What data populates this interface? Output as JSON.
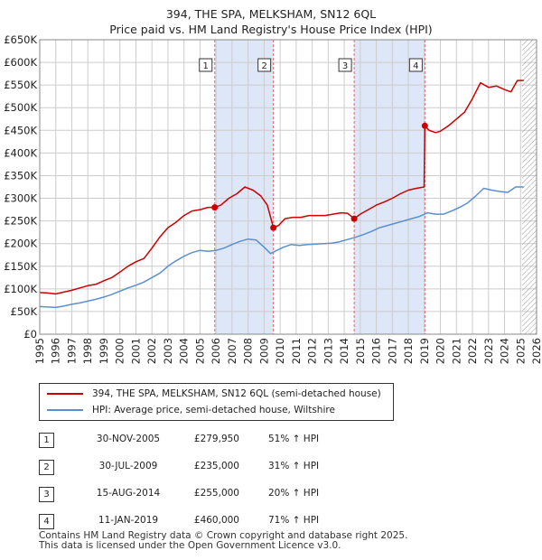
{
  "title_line1": "394, THE SPA, MELKSHAM, SN12 6QL",
  "title_line2": "Price paid vs. HM Land Registry's House Price Index (HPI)",
  "legend": {
    "property_label": "394, THE SPA, MELKSHAM, SN12 6QL (semi-detached house)",
    "hpi_label": "HPI: Average price, semi-detached house, Wiltshire"
  },
  "colors": {
    "property": "#cc0000",
    "hpi": "#5b8fd0",
    "band": "#dde7f7",
    "vline": "#e06666",
    "grid": "#cccccc"
  },
  "sales": [
    {
      "num": "1",
      "date": "30-NOV-2005",
      "price": "£279,950",
      "hpi": "51% ↑ HPI"
    },
    {
      "num": "2",
      "date": "30-JUL-2009",
      "price": "£235,000",
      "hpi": "31% ↑ HPI"
    },
    {
      "num": "3",
      "date": "15-AUG-2014",
      "price": "£255,000",
      "hpi": "20% ↑ HPI"
    },
    {
      "num": "4",
      "date": "11-JAN-2019",
      "price": "£460,000",
      "hpi": "71% ↑ HPI"
    }
  ],
  "footer_line1": "Contains HM Land Registry data © Crown copyright and database right 2025.",
  "footer_line2": "This data is licensed under the Open Government Licence v3.0.",
  "chart_data": {
    "type": "line",
    "title": "Price paid vs. HM Land Registry's House Price Index (HPI)",
    "xlim": [
      1995,
      2026
    ],
    "ylim": [
      0,
      650000
    ],
    "x_ticks": [
      "1995",
      "1996",
      "1997",
      "1998",
      "1999",
      "2000",
      "2001",
      "2002",
      "2003",
      "2004",
      "2005",
      "2006",
      "2007",
      "2008",
      "2009",
      "2010",
      "2011",
      "2012",
      "2013",
      "2014",
      "2015",
      "2016",
      "2017",
      "2018",
      "2019",
      "2020",
      "2021",
      "2022",
      "2023",
      "2024",
      "2025",
      "2026"
    ],
    "y_ticks": [
      {
        "value": 0,
        "label": "£0"
      },
      {
        "value": 50000,
        "label": "£50K"
      },
      {
        "value": 100000,
        "label": "£100K"
      },
      {
        "value": 150000,
        "label": "£150K"
      },
      {
        "value": 200000,
        "label": "£200K"
      },
      {
        "value": 250000,
        "label": "£250K"
      },
      {
        "value": 300000,
        "label": "£300K"
      },
      {
        "value": 350000,
        "label": "£350K"
      },
      {
        "value": 400000,
        "label": "£400K"
      },
      {
        "value": 450000,
        "label": "£450K"
      },
      {
        "value": 500000,
        "label": "£500K"
      },
      {
        "value": 550000,
        "label": "£550K"
      },
      {
        "value": 600000,
        "label": "£600K"
      },
      {
        "value": 650000,
        "label": "£650K"
      }
    ],
    "shaded_periods": [
      {
        "from": 2005.92,
        "to": 2009.58
      },
      {
        "from": 2014.62,
        "to": 2019.03
      }
    ],
    "hatched_from": 2025.1,
    "sale_markers": [
      {
        "label": "1",
        "x": 2005.92,
        "y": 279950
      },
      {
        "label": "2",
        "x": 2009.58,
        "y": 235000
      },
      {
        "label": "3",
        "x": 2014.62,
        "y": 255000
      },
      {
        "label": "4",
        "x": 2019.03,
        "y": 460000
      }
    ],
    "series": [
      {
        "name": "394, THE SPA, MELKSHAM, SN12 6QL (semi-detached house)",
        "color": "#cc0000",
        "points": [
          [
            1995.0,
            92000
          ],
          [
            1995.5,
            91000
          ],
          [
            1996.0,
            89000
          ],
          [
            1996.5,
            93000
          ],
          [
            1997.0,
            97000
          ],
          [
            1997.5,
            102000
          ],
          [
            1998.0,
            107000
          ],
          [
            1998.5,
            110000
          ],
          [
            1999.0,
            118000
          ],
          [
            1999.5,
            125000
          ],
          [
            2000.0,
            137000
          ],
          [
            2000.5,
            150000
          ],
          [
            2001.0,
            160000
          ],
          [
            2001.5,
            167000
          ],
          [
            2002.0,
            190000
          ],
          [
            2002.5,
            215000
          ],
          [
            2003.0,
            235000
          ],
          [
            2003.5,
            247000
          ],
          [
            2004.0,
            262000
          ],
          [
            2004.5,
            272000
          ],
          [
            2005.0,
            275000
          ],
          [
            2005.5,
            280000
          ],
          [
            2005.92,
            279950
          ],
          [
            2006.3,
            285000
          ],
          [
            2006.8,
            300000
          ],
          [
            2007.3,
            310000
          ],
          [
            2007.8,
            325000
          ],
          [
            2008.3,
            318000
          ],
          [
            2008.8,
            305000
          ],
          [
            2009.2,
            285000
          ],
          [
            2009.58,
            235000
          ],
          [
            2009.9,
            240000
          ],
          [
            2010.3,
            255000
          ],
          [
            2010.8,
            258000
          ],
          [
            2011.3,
            258000
          ],
          [
            2011.8,
            262000
          ],
          [
            2012.3,
            262000
          ],
          [
            2012.8,
            262000
          ],
          [
            2013.3,
            265000
          ],
          [
            2013.8,
            268000
          ],
          [
            2014.2,
            267000
          ],
          [
            2014.62,
            255000
          ],
          [
            2015.0,
            265000
          ],
          [
            2015.5,
            275000
          ],
          [
            2016.0,
            285000
          ],
          [
            2016.5,
            292000
          ],
          [
            2017.0,
            300000
          ],
          [
            2017.5,
            310000
          ],
          [
            2018.0,
            318000
          ],
          [
            2018.5,
            322000
          ],
          [
            2018.98,
            325000
          ],
          [
            2019.03,
            460000
          ],
          [
            2019.3,
            450000
          ],
          [
            2019.7,
            445000
          ],
          [
            2020.0,
            448000
          ],
          [
            2020.5,
            460000
          ],
          [
            2021.0,
            475000
          ],
          [
            2021.5,
            490000
          ],
          [
            2022.0,
            520000
          ],
          [
            2022.5,
            555000
          ],
          [
            2023.0,
            545000
          ],
          [
            2023.5,
            548000
          ],
          [
            2024.0,
            540000
          ],
          [
            2024.4,
            535000
          ],
          [
            2024.8,
            560000
          ],
          [
            2025.2,
            560000
          ]
        ]
      },
      {
        "name": "HPI: Average price, semi-detached house, Wiltshire",
        "color": "#5b8fd0",
        "points": [
          [
            1995.0,
            61000
          ],
          [
            1995.5,
            60000
          ],
          [
            1996.0,
            59000
          ],
          [
            1996.5,
            62000
          ],
          [
            1997.0,
            66000
          ],
          [
            1997.5,
            69000
          ],
          [
            1998.0,
            73000
          ],
          [
            1998.5,
            77000
          ],
          [
            1999.0,
            82000
          ],
          [
            1999.5,
            88000
          ],
          [
            2000.0,
            95000
          ],
          [
            2000.5,
            102000
          ],
          [
            2001.0,
            108000
          ],
          [
            2001.5,
            115000
          ],
          [
            2002.0,
            125000
          ],
          [
            2002.5,
            135000
          ],
          [
            2003.0,
            150000
          ],
          [
            2003.5,
            162000
          ],
          [
            2004.0,
            172000
          ],
          [
            2004.5,
            180000
          ],
          [
            2005.0,
            185000
          ],
          [
            2005.5,
            183000
          ],
          [
            2006.0,
            185000
          ],
          [
            2006.5,
            190000
          ],
          [
            2007.0,
            198000
          ],
          [
            2007.5,
            205000
          ],
          [
            2008.0,
            210000
          ],
          [
            2008.5,
            208000
          ],
          [
            2009.0,
            192000
          ],
          [
            2009.4,
            178000
          ],
          [
            2009.8,
            185000
          ],
          [
            2010.2,
            192000
          ],
          [
            2010.7,
            198000
          ],
          [
            2011.2,
            196000
          ],
          [
            2011.7,
            198000
          ],
          [
            2012.2,
            199000
          ],
          [
            2012.7,
            200000
          ],
          [
            2013.2,
            201000
          ],
          [
            2013.7,
            204000
          ],
          [
            2014.2,
            209000
          ],
          [
            2014.7,
            214000
          ],
          [
            2015.2,
            220000
          ],
          [
            2015.7,
            227000
          ],
          [
            2016.2,
            235000
          ],
          [
            2016.7,
            240000
          ],
          [
            2017.2,
            245000
          ],
          [
            2017.7,
            250000
          ],
          [
            2018.2,
            255000
          ],
          [
            2018.7,
            260000
          ],
          [
            2019.2,
            268000
          ],
          [
            2019.7,
            265000
          ],
          [
            2020.2,
            265000
          ],
          [
            2020.7,
            272000
          ],
          [
            2021.2,
            280000
          ],
          [
            2021.7,
            290000
          ],
          [
            2022.2,
            305000
          ],
          [
            2022.7,
            322000
          ],
          [
            2023.2,
            318000
          ],
          [
            2023.7,
            315000
          ],
          [
            2024.2,
            313000
          ],
          [
            2024.7,
            325000
          ],
          [
            2025.2,
            325000
          ]
        ]
      }
    ]
  }
}
